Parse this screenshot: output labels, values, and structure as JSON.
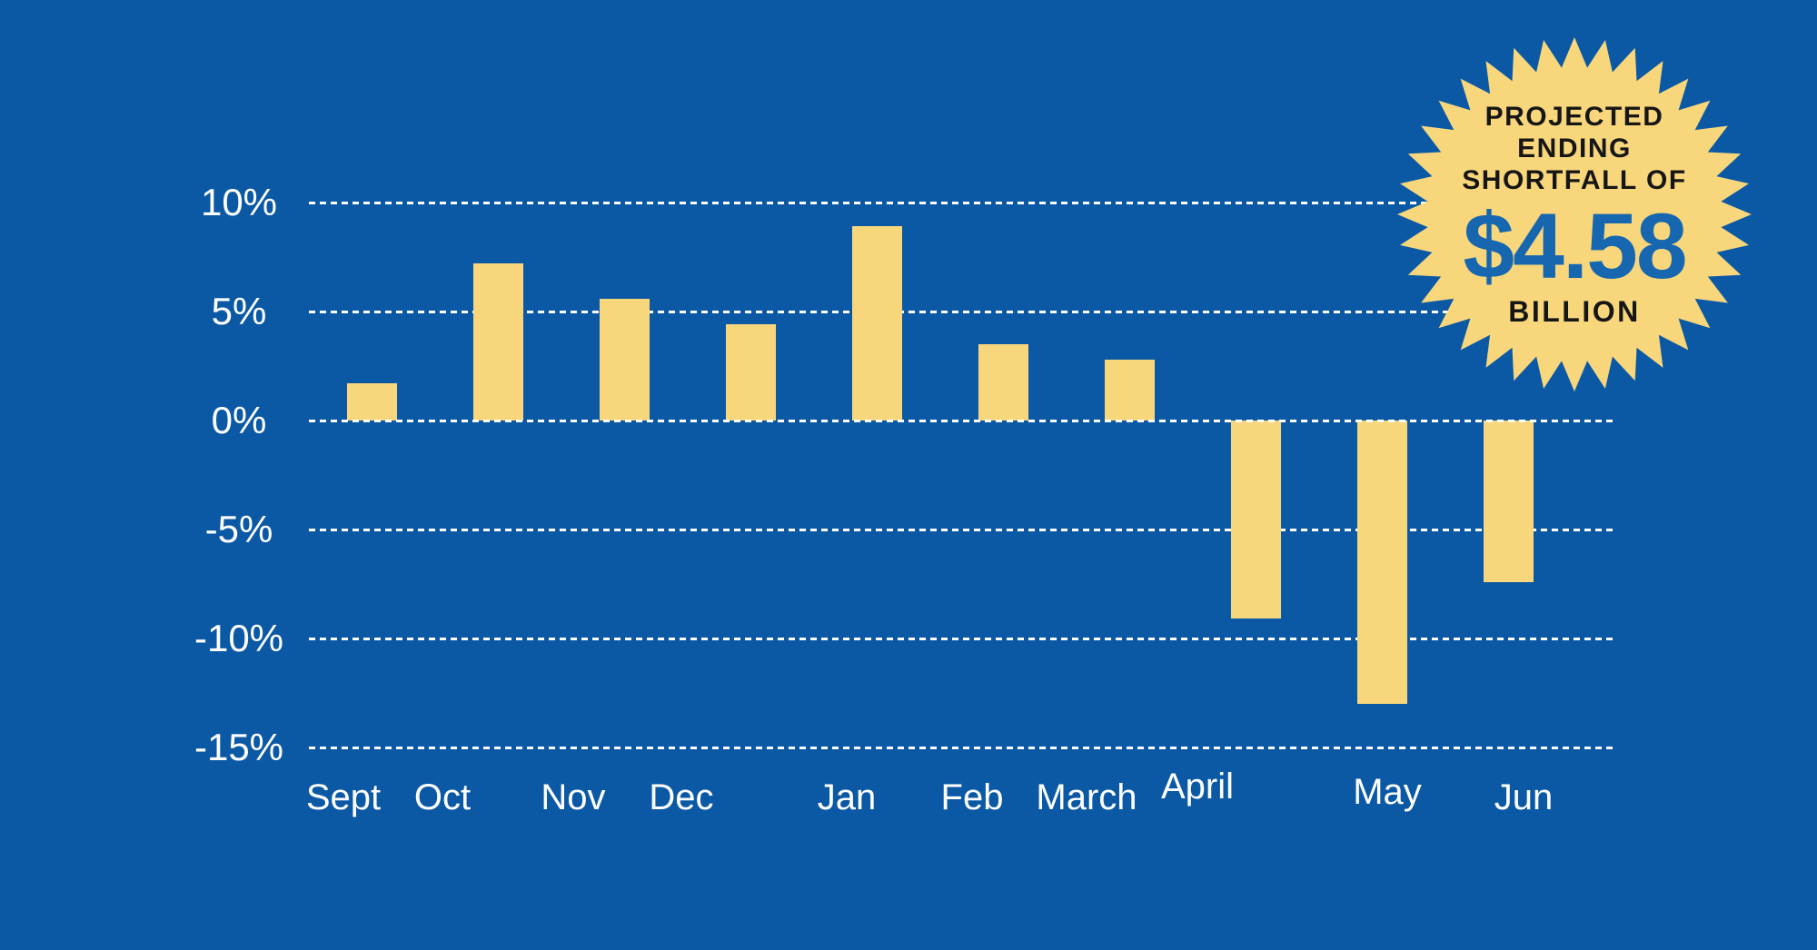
{
  "colors": {
    "background": "#0B59A5",
    "bar": "#F8D77C",
    "grid": "#FFFFFF",
    "label": "#FFFFFF",
    "accent": "#1767B0",
    "badgefill": "#F8D77C",
    "badgetext": "#161616"
  },
  "badge": {
    "line1": "PROJECTED",
    "line2": "ENDING",
    "line3": "SHORTFALL OF",
    "amount": "$4.58",
    "unit": "BILLION"
  },
  "chart_data": {
    "type": "bar",
    "title": "",
    "xlabel": "",
    "ylabel": "",
    "categories": [
      "Sept",
      "Oct",
      "Nov",
      "Dec",
      "Jan",
      "Feb",
      "March",
      "April",
      "May",
      "Jun"
    ],
    "values": [
      1.7,
      7.2,
      5.6,
      4.4,
      8.9,
      3.5,
      2.8,
      -9.1,
      -13,
      -7.4
    ],
    "y_ticks": {
      "labels": [
        "10%",
        "5%",
        "0%",
        "-5%",
        "-10%",
        "-15%"
      ],
      "values": [
        10,
        5,
        0,
        -5,
        -10,
        -15
      ]
    },
    "ylim": [
      -15,
      10
    ],
    "grid": "horizontal dashed, white",
    "legend": "none",
    "annotation": "PROJECTED ENDING SHORTFALL OF $4.58 BILLION"
  }
}
